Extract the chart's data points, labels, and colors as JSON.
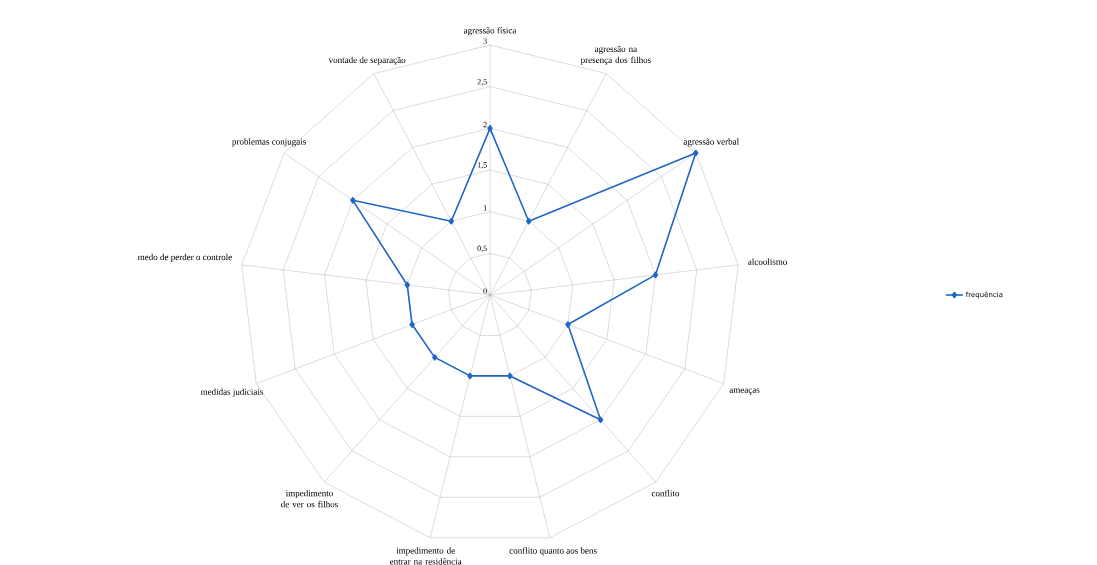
{
  "chart_data": {
    "type": "radar",
    "categories": [
      "agressão física",
      "agressão na presença dos filhos",
      "agressão verbal",
      "alcoolismo",
      "ameaças",
      "conflito",
      "conflito quanto aos bens",
      "impedimento de entrar na residência",
      "impedimento de ver os filhos",
      "medidas judiciais",
      "medo de perder o controle",
      "problemas conjugais",
      "vontade de separação"
    ],
    "series": [
      {
        "name": "frequência",
        "color": "#1f66c4",
        "values": [
          2,
          1,
          3,
          2,
          1,
          2,
          1,
          1,
          1,
          1,
          1,
          2,
          1
        ]
      }
    ],
    "ylim": [
      0,
      3
    ],
    "yticks": [
      0,
      {
        "value": 0.5,
        "label": "0,5"
      },
      1,
      {
        "value": 1.5,
        "label": "1,5"
      },
      2,
      {
        "value": 2.5,
        "label": "2,5"
      },
      3
    ],
    "grid": true,
    "legend": "right",
    "marker": "diamond",
    "line_style": "solid"
  }
}
